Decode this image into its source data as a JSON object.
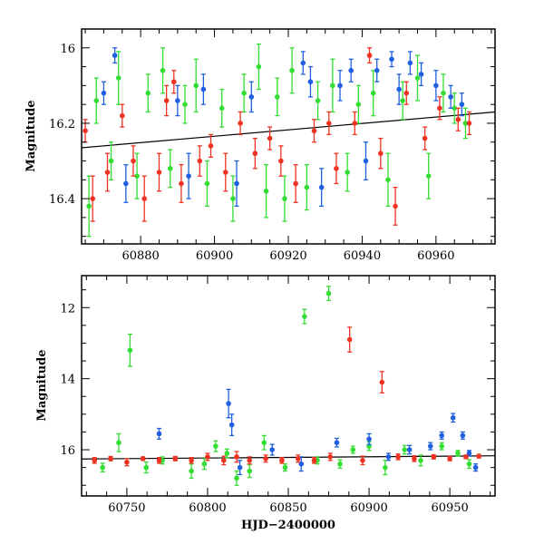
{
  "colors": {
    "green": "#33dd33",
    "blue": "#1f5fe0",
    "red": "#ee3322",
    "fit": "#000000"
  },
  "chart_data": [
    {
      "type": "scatter",
      "panel": "top",
      "xlabel": "",
      "ylabel": "Magnitude",
      "xlim": [
        60864,
        60976
      ],
      "ylim": [
        16.52,
        15.95
      ],
      "y_inverted": true,
      "xticks": [
        60880,
        60900,
        60920,
        60940,
        60960
      ],
      "xtick_labels": [
        "60880",
        "60900",
        "60920",
        "60940",
        "60960"
      ],
      "yticks": [
        16.0,
        16.2,
        16.4
      ],
      "ytick_labels": [
        "16",
        "16.2",
        "16.4"
      ],
      "baseline": {
        "x": [
          60864,
          60976
        ],
        "y": [
          16.265,
          16.17
        ]
      },
      "series": [
        {
          "name": "green",
          "color_key": "green",
          "points": [
            [
              60866,
              16.42,
              0.08
            ],
            [
              60868,
              16.14,
              0.06
            ],
            [
              60872,
              16.3,
              0.05
            ],
            [
              60874,
              16.08,
              0.07
            ],
            [
              60879,
              16.34,
              0.06
            ],
            [
              60882,
              16.12,
              0.05
            ],
            [
              60886,
              16.06,
              0.06
            ],
            [
              60888,
              16.32,
              0.05
            ],
            [
              60892,
              16.15,
              0.05
            ],
            [
              60895,
              16.1,
              0.07
            ],
            [
              60898,
              16.36,
              0.06
            ],
            [
              60902,
              16.16,
              0.05
            ],
            [
              60905,
              16.4,
              0.06
            ],
            [
              60908,
              16.12,
              0.05
            ],
            [
              60912,
              16.05,
              0.06
            ],
            [
              60914,
              16.38,
              0.07
            ],
            [
              60917,
              16.13,
              0.05
            ],
            [
              60919,
              16.4,
              0.06
            ],
            [
              60921,
              16.06,
              0.06
            ],
            [
              60925,
              16.37,
              0.06
            ],
            [
              60928,
              16.14,
              0.05
            ],
            [
              60932,
              16.1,
              0.07
            ],
            [
              60936,
              16.33,
              0.05
            ],
            [
              60939,
              16.15,
              0.05
            ],
            [
              60943,
              16.12,
              0.06
            ],
            [
              60947,
              16.35,
              0.07
            ],
            [
              60951,
              16.14,
              0.05
            ],
            [
              60955,
              16.08,
              0.06
            ],
            [
              60958,
              16.34,
              0.06
            ],
            [
              60962,
              16.12,
              0.05
            ],
            [
              60965,
              16.16,
              0.04
            ],
            [
              60968,
              16.2,
              0.04
            ]
          ]
        },
        {
          "name": "blue",
          "color_key": "blue",
          "points": [
            [
              60870,
              16.12,
              0.03
            ],
            [
              60873,
              16.02,
              0.02
            ],
            [
              60876,
              16.36,
              0.05
            ],
            [
              60890,
              16.14,
              0.04
            ],
            [
              60893,
              16.34,
              0.06
            ],
            [
              60897,
              16.11,
              0.04
            ],
            [
              60906,
              16.36,
              0.06
            ],
            [
              60910,
              16.13,
              0.04
            ],
            [
              60924,
              16.04,
              0.03
            ],
            [
              60926,
              16.09,
              0.04
            ],
            [
              60929,
              16.37,
              0.05
            ],
            [
              60934,
              16.1,
              0.04
            ],
            [
              60937,
              16.06,
              0.03
            ],
            [
              60941,
              16.3,
              0.05
            ],
            [
              60944,
              16.06,
              0.03
            ],
            [
              60948,
              16.03,
              0.02
            ],
            [
              60950,
              16.11,
              0.04
            ],
            [
              60953,
              16.04,
              0.03
            ],
            [
              60956,
              16.07,
              0.03
            ],
            [
              60960,
              16.1,
              0.04
            ],
            [
              60964,
              16.13,
              0.03
            ],
            [
              60967,
              16.15,
              0.03
            ]
          ]
        },
        {
          "name": "red",
          "color_key": "red",
          "points": [
            [
              60865,
              16.22,
              0.03
            ],
            [
              60867,
              16.4,
              0.06
            ],
            [
              60871,
              16.33,
              0.05
            ],
            [
              60875,
              16.18,
              0.03
            ],
            [
              60878,
              16.3,
              0.04
            ],
            [
              60881,
              16.4,
              0.06
            ],
            [
              60885,
              16.33,
              0.05
            ],
            [
              60887,
              16.14,
              0.04
            ],
            [
              60889,
              16.09,
              0.03
            ],
            [
              60891,
              16.36,
              0.05
            ],
            [
              60896,
              16.3,
              0.04
            ],
            [
              60899,
              16.26,
              0.03
            ],
            [
              60903,
              16.33,
              0.05
            ],
            [
              60907,
              16.2,
              0.03
            ],
            [
              60911,
              16.28,
              0.04
            ],
            [
              60915,
              16.24,
              0.03
            ],
            [
              60918,
              16.3,
              0.04
            ],
            [
              60922,
              16.36,
              0.05
            ],
            [
              60927,
              16.22,
              0.03
            ],
            [
              60931,
              16.2,
              0.03
            ],
            [
              60933,
              16.32,
              0.04
            ],
            [
              60938,
              16.2,
              0.03
            ],
            [
              60942,
              16.02,
              0.02
            ],
            [
              60945,
              16.28,
              0.04
            ],
            [
              60949,
              16.42,
              0.05
            ],
            [
              60952,
              16.12,
              0.03
            ],
            [
              60957,
              16.24,
              0.03
            ],
            [
              60961,
              16.16,
              0.03
            ],
            [
              60966,
              16.19,
              0.03
            ],
            [
              60969,
              16.2,
              0.03
            ]
          ]
        }
      ]
    },
    {
      "type": "scatter",
      "panel": "bottom",
      "xlabel": "HJD−2400000",
      "ylabel": "Magnitude",
      "xlim": [
        60722,
        60978
      ],
      "ylim": [
        17.3,
        11.1
      ],
      "y_inverted": true,
      "xticks": [
        60750,
        60800,
        60850,
        60900,
        60950
      ],
      "xtick_labels": [
        "60750",
        "60800",
        "60850",
        "60900",
        "60950"
      ],
      "yticks": [
        12,
        14,
        16
      ],
      "ytick_labels": [
        "12",
        "14",
        "16"
      ],
      "baseline": {
        "x": [
          60722,
          60978
        ],
        "y": [
          16.26,
          16.17
        ]
      },
      "series": [
        {
          "name": "green",
          "color_key": "green",
          "points": [
            [
              60735,
              16.5,
              0.12
            ],
            [
              60745,
              15.8,
              0.25
            ],
            [
              60752,
              13.2,
              0.45
            ],
            [
              60762,
              16.5,
              0.15
            ],
            [
              60772,
              16.3,
              0.1
            ],
            [
              60790,
              16.6,
              0.2
            ],
            [
              60798,
              16.4,
              0.15
            ],
            [
              60805,
              15.9,
              0.15
            ],
            [
              60812,
              16.1,
              0.12
            ],
            [
              60818,
              16.8,
              0.2
            ],
            [
              60826,
              16.6,
              0.18
            ],
            [
              60835,
              15.8,
              0.2
            ],
            [
              60848,
              16.5,
              0.1
            ],
            [
              60860,
              12.25,
              0.2
            ],
            [
              60868,
              16.3,
              0.1
            ],
            [
              60875,
              11.6,
              0.2
            ],
            [
              60882,
              16.4,
              0.12
            ],
            [
              60890,
              16.0,
              0.1
            ],
            [
              60900,
              15.9,
              0.12
            ],
            [
              60910,
              16.5,
              0.2
            ],
            [
              60922,
              16.0,
              0.12
            ],
            [
              60932,
              16.3,
              0.15
            ],
            [
              60945,
              15.9,
              0.1
            ],
            [
              60955,
              16.1,
              0.08
            ],
            [
              60962,
              16.4,
              0.12
            ]
          ]
        },
        {
          "name": "blue",
          "color_key": "blue",
          "points": [
            [
              60770,
              15.55,
              0.15
            ],
            [
              60813,
              14.7,
              0.4
            ],
            [
              60815,
              15.3,
              0.3
            ],
            [
              60820,
              16.5,
              0.2
            ],
            [
              60840,
              16.0,
              0.15
            ],
            [
              60858,
              16.4,
              0.2
            ],
            [
              60880,
              15.8,
              0.12
            ],
            [
              60900,
              15.7,
              0.15
            ],
            [
              60912,
              16.2,
              0.1
            ],
            [
              60925,
              16.0,
              0.12
            ],
            [
              60938,
              15.9,
              0.1
            ],
            [
              60945,
              15.6,
              0.1
            ],
            [
              60952,
              15.1,
              0.12
            ],
            [
              60958,
              15.6,
              0.1
            ],
            [
              60962,
              16.1,
              0.08
            ],
            [
              60966,
              16.5,
              0.1
            ]
          ]
        },
        {
          "name": "red",
          "color_key": "red",
          "points": [
            [
              60730,
              16.3,
              0.08
            ],
            [
              60740,
              16.25,
              0.06
            ],
            [
              60750,
              16.35,
              0.1
            ],
            [
              60760,
              16.25,
              0.05
            ],
            [
              60770,
              16.3,
              0.08
            ],
            [
              60780,
              16.25,
              0.06
            ],
            [
              60790,
              16.3,
              0.08
            ],
            [
              60800,
              16.2,
              0.1
            ],
            [
              60810,
              16.3,
              0.12
            ],
            [
              60818,
              16.2,
              0.15
            ],
            [
              60826,
              16.3,
              0.1
            ],
            [
              60836,
              16.25,
              0.1
            ],
            [
              60846,
              16.3,
              0.08
            ],
            [
              60856,
              16.25,
              0.1
            ],
            [
              60866,
              16.3,
              0.08
            ],
            [
              60876,
              16.2,
              0.1
            ],
            [
              60888,
              12.9,
              0.35
            ],
            [
              60896,
              16.3,
              0.12
            ],
            [
              60908,
              14.1,
              0.3
            ],
            [
              60918,
              16.2,
              0.08
            ],
            [
              60928,
              16.25,
              0.08
            ],
            [
              60940,
              16.2,
              0.06
            ],
            [
              60950,
              16.25,
              0.06
            ],
            [
              60960,
              16.2,
              0.05
            ],
            [
              60968,
              16.18,
              0.05
            ]
          ]
        }
      ]
    }
  ]
}
